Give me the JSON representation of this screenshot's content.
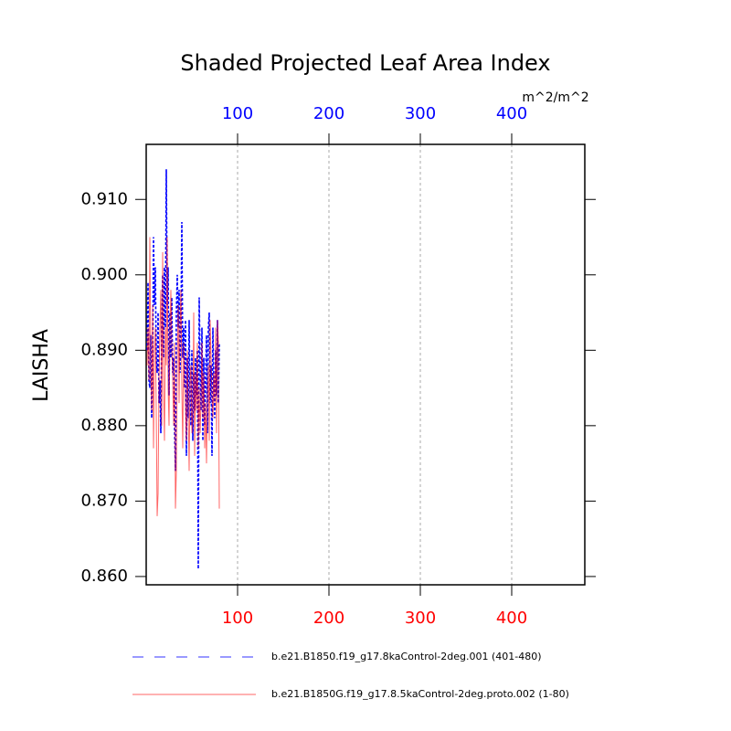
{
  "chart_data": {
    "type": "line",
    "title": "Shaded Projected Leaf Area Index",
    "ylabel": "LAISHA",
    "units": "m^2/m^2",
    "x": [
      1,
      2,
      3,
      4,
      5,
      6,
      7,
      8,
      9,
      10,
      11,
      12,
      13,
      14,
      15,
      16,
      17,
      18,
      19,
      20,
      21,
      22,
      23,
      24,
      25,
      26,
      27,
      28,
      29,
      30,
      31,
      32,
      33,
      34,
      35,
      36,
      37,
      38,
      39,
      40,
      41,
      42,
      43,
      44,
      45,
      46,
      47,
      48,
      49,
      50,
      51,
      52,
      53,
      54,
      55,
      56,
      57,
      58,
      59,
      60,
      61,
      62,
      63,
      64,
      65,
      66,
      67,
      68,
      69,
      70,
      71,
      72,
      73,
      74,
      75,
      76,
      77,
      78,
      79,
      80
    ],
    "series": [
      {
        "name": "b.e21.B1850.f19_g17.8kaControl-2deg.001 (401-480)",
        "color": "#0000ff",
        "dash": true,
        "values": [
          0.89,
          0.899,
          0.886,
          0.885,
          0.892,
          0.881,
          0.887,
          0.905,
          0.896,
          0.901,
          0.889,
          0.887,
          0.895,
          0.883,
          0.886,
          0.879,
          0.893,
          0.9,
          0.889,
          0.901,
          0.893,
          0.914,
          0.896,
          0.901,
          0.884,
          0.895,
          0.889,
          0.897,
          0.887,
          0.889,
          0.88,
          0.874,
          0.895,
          0.9,
          0.893,
          0.898,
          0.887,
          0.893,
          0.907,
          0.889,
          0.893,
          0.885,
          0.894,
          0.876,
          0.889,
          0.881,
          0.894,
          0.883,
          0.88,
          0.89,
          0.878,
          0.887,
          0.882,
          0.889,
          0.884,
          0.89,
          0.861,
          0.897,
          0.888,
          0.882,
          0.893,
          0.878,
          0.889,
          0.88,
          0.886,
          0.892,
          0.879,
          0.893,
          0.895,
          0.883,
          0.888,
          0.876,
          0.893,
          0.885,
          0.881,
          0.89,
          0.884,
          0.894,
          0.883,
          0.891
        ]
      },
      {
        "name": "b.e21.B1850G.f19_g17.8.5kaControl-2deg.proto.002 (1-80)",
        "color": "#ff0000",
        "dash": false,
        "values": [
          0.888,
          0.893,
          0.886,
          0.905,
          0.888,
          0.882,
          0.896,
          0.877,
          0.89,
          0.893,
          0.882,
          0.868,
          0.871,
          0.886,
          0.893,
          0.898,
          0.88,
          0.903,
          0.885,
          0.878,
          0.893,
          0.888,
          0.905,
          0.885,
          0.88,
          0.893,
          0.898,
          0.891,
          0.886,
          0.88,
          0.891,
          0.869,
          0.874,
          0.889,
          0.896,
          0.883,
          0.893,
          0.898,
          0.885,
          0.877,
          0.891,
          0.886,
          0.882,
          0.878,
          0.89,
          0.882,
          0.874,
          0.886,
          0.888,
          0.879,
          0.882,
          0.895,
          0.876,
          0.887,
          0.882,
          0.891,
          0.877,
          0.885,
          0.879,
          0.883,
          0.891,
          0.881,
          0.887,
          0.877,
          0.883,
          0.875,
          0.884,
          0.888,
          0.878,
          0.894,
          0.889,
          0.884,
          0.881,
          0.887,
          0.883,
          0.893,
          0.879,
          0.894,
          0.891,
          0.869
        ]
      }
    ],
    "xlim": [
      0,
      480
    ],
    "xticks": [
      100,
      200,
      300,
      400
    ],
    "xtick_color": "#ff0000",
    "x2ticks": [
      100,
      200,
      300,
      400
    ],
    "x2tick_color": "#0000ff",
    "ylim": [
      0.8589,
      0.9173
    ],
    "yticks": [
      {
        "value": 0.86,
        "label": "0.860"
      },
      {
        "value": 0.87,
        "label": "0.870"
      },
      {
        "value": 0.88,
        "label": "0.880"
      },
      {
        "value": 0.89,
        "label": "0.890"
      },
      {
        "value": 0.9,
        "label": "0.900"
      },
      {
        "value": 0.91,
        "label": "0.910"
      }
    ],
    "grid": true
  }
}
